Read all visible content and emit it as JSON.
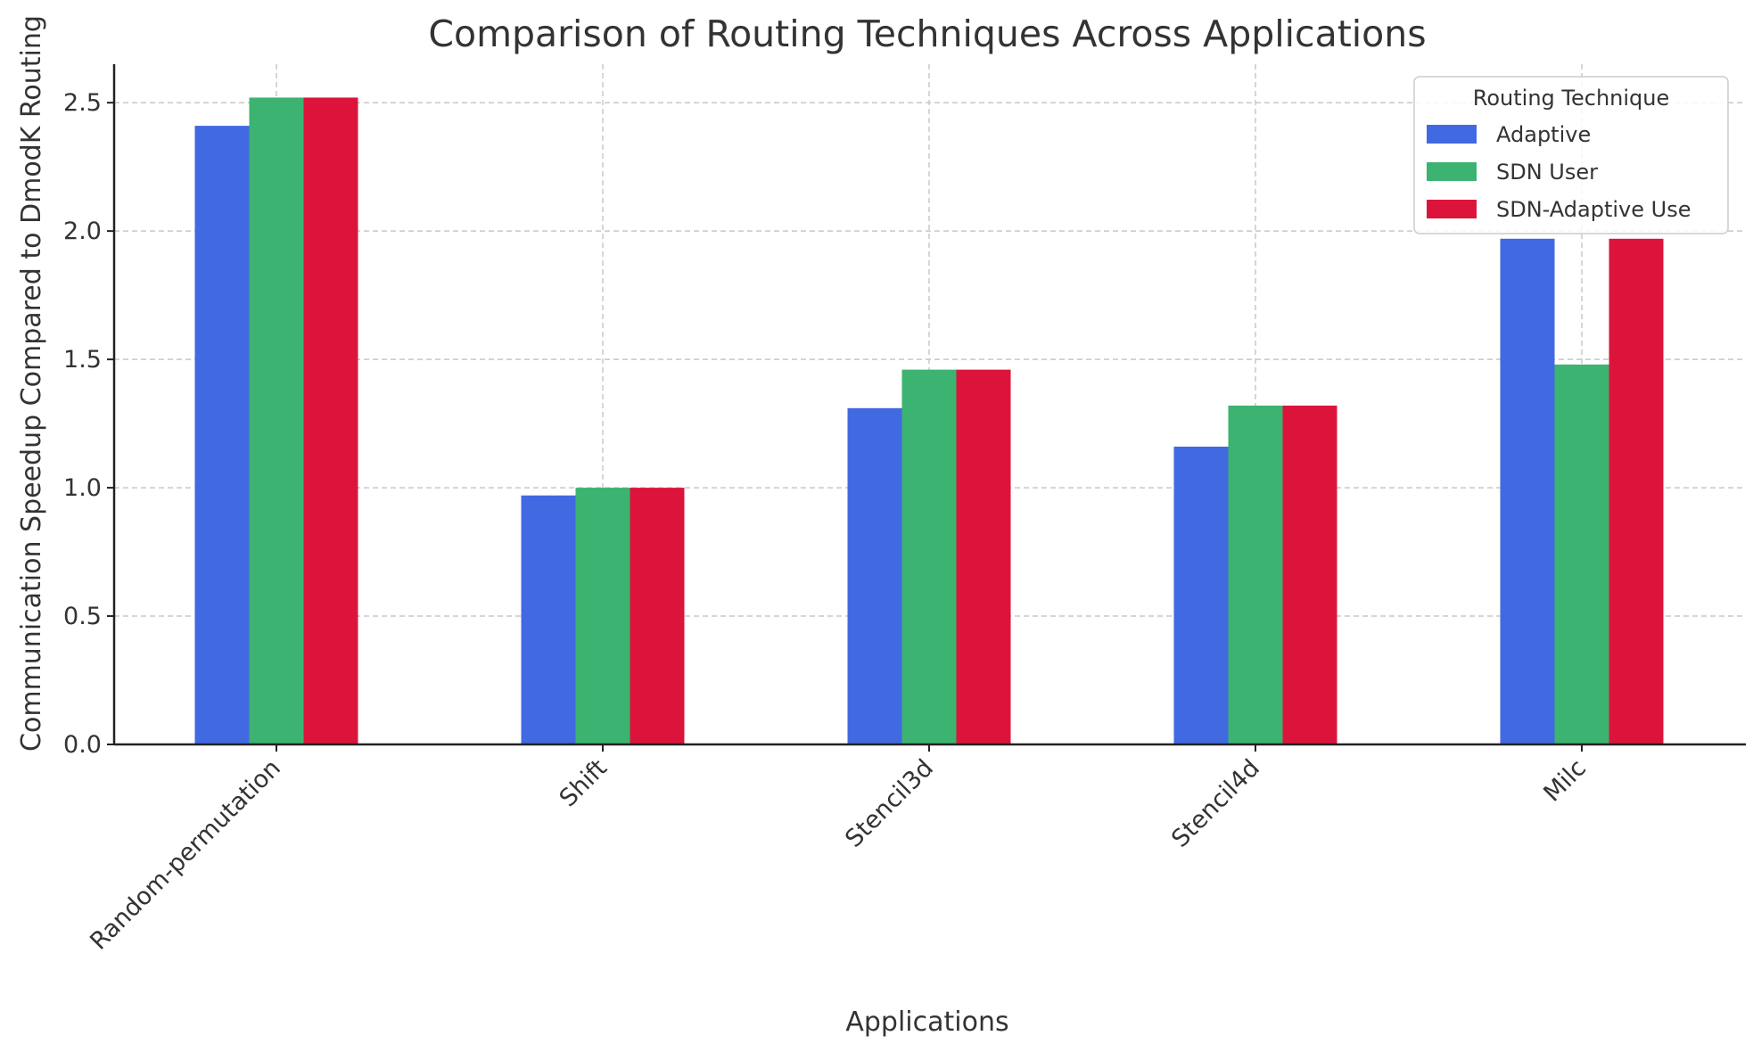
{
  "chart_data": {
    "type": "bar",
    "title": "Comparison of Routing Techniques Across Applications",
    "xlabel": "Applications",
    "ylabel": "Communication Speedup Compared to DmodK Routing",
    "categories": [
      "Random-permutation",
      "Shift",
      "Stencil3d",
      "Stencil4d",
      "Milc"
    ],
    "series": [
      {
        "name": "Adaptive",
        "color": "#4169e1",
        "values": [
          2.41,
          0.97,
          1.31,
          1.16,
          1.97
        ]
      },
      {
        "name": "SDN User",
        "color": "#3cb371",
        "values": [
          2.52,
          1.0,
          1.46,
          1.32,
          1.48
        ]
      },
      {
        "name": "SDN-Adaptive Use",
        "color": "#dc143c",
        "values": [
          2.52,
          1.0,
          1.46,
          1.32,
          1.97
        ]
      }
    ],
    "ylim": [
      0,
      2.65
    ],
    "yticks": [
      "0.0",
      "0.5",
      "1.0",
      "1.5",
      "2.0",
      "2.5"
    ],
    "grid": true,
    "legend_title": "Routing Technique",
    "legend_position": "top-right"
  }
}
